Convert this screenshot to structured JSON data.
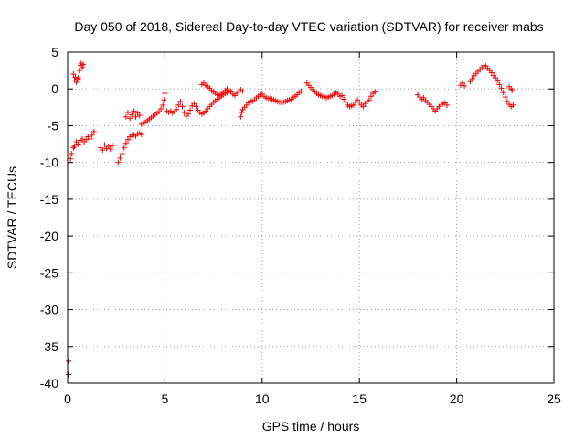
{
  "chart_data": {
    "type": "scatter",
    "title": "Day 050 of 2018, Sidereal Day-to-day VTEC variation (SDTVAR) for receiver mabs",
    "xlabel": "GPS time / hours",
    "ylabel": "SDTVAR / TECUs",
    "xlim": [
      0,
      25
    ],
    "ylim": [
      -40,
      5
    ],
    "xticks": [
      0,
      5,
      10,
      15,
      20,
      25
    ],
    "yticks": [
      5,
      0,
      -5,
      -10,
      -15,
      -20,
      -25,
      -30,
      -35,
      -40
    ],
    "grid": true,
    "marker": "+",
    "colors": {
      "primary": "#ff0000",
      "secondary": "#8b0000"
    },
    "series": [
      {
        "name": "main",
        "color": "#ff0000",
        "points": [
          [
            0.15,
            -9.5
          ],
          [
            0.2,
            -8.8
          ],
          [
            0.3,
            -8.0
          ],
          [
            0.3,
            2.0
          ],
          [
            0.35,
            1.2
          ],
          [
            0.4,
            1.6
          ],
          [
            0.45,
            0.9
          ],
          [
            0.5,
            1.3
          ],
          [
            0.55,
            1.5
          ],
          [
            0.6,
            2.5
          ],
          [
            0.65,
            3.2
          ],
          [
            0.7,
            3.5
          ],
          [
            0.75,
            2.9
          ],
          [
            0.8,
            3.3
          ],
          [
            0.35,
            -7.8
          ],
          [
            0.45,
            -7.2
          ],
          [
            0.55,
            -7.5
          ],
          [
            0.65,
            -7.0
          ],
          [
            0.75,
            -6.8
          ],
          [
            0.85,
            -7.2
          ],
          [
            0.95,
            -6.9
          ],
          [
            1.05,
            -6.5
          ],
          [
            1.15,
            -6.8
          ],
          [
            1.25,
            -6.3
          ],
          [
            1.35,
            -5.8
          ],
          [
            1.7,
            -8.0
          ],
          [
            1.8,
            -8.3
          ],
          [
            1.9,
            -7.6
          ],
          [
            2.0,
            -8.1
          ],
          [
            2.1,
            -7.8
          ],
          [
            2.2,
            -8.2
          ],
          [
            2.3,
            -7.7
          ],
          [
            2.6,
            -10.0
          ],
          [
            2.7,
            -9.4
          ],
          [
            2.8,
            -8.8
          ],
          [
            2.9,
            -8.0
          ],
          [
            3.0,
            -7.4
          ],
          [
            3.1,
            -6.9
          ],
          [
            3.2,
            -6.5
          ],
          [
            3.3,
            -6.3
          ],
          [
            3.4,
            -6.2
          ],
          [
            3.5,
            -6.4
          ],
          [
            3.6,
            -6.1
          ],
          [
            3.7,
            -6.0
          ],
          [
            3.8,
            -6.2
          ],
          [
            3.0,
            -3.8
          ],
          [
            3.1,
            -3.2
          ],
          [
            3.2,
            -4.0
          ],
          [
            3.3,
            -3.5
          ],
          [
            3.4,
            -3.0
          ],
          [
            3.5,
            -3.8
          ],
          [
            3.6,
            -3.3
          ],
          [
            3.7,
            -3.6
          ],
          [
            3.8,
            -4.8
          ],
          [
            3.9,
            -4.6
          ],
          [
            4.0,
            -4.5
          ],
          [
            4.1,
            -4.3
          ],
          [
            4.2,
            -4.1
          ],
          [
            4.3,
            -3.9
          ],
          [
            4.4,
            -3.7
          ],
          [
            4.5,
            -3.5
          ],
          [
            4.6,
            -3.3
          ],
          [
            4.7,
            -3.1
          ],
          [
            4.8,
            -2.7
          ],
          [
            4.9,
            -2.2
          ],
          [
            4.95,
            -1.5
          ],
          [
            5.0,
            -0.6
          ],
          [
            5.1,
            -3.0
          ],
          [
            5.2,
            -3.2
          ],
          [
            5.3,
            -3.0
          ],
          [
            5.4,
            -3.3
          ],
          [
            5.5,
            -3.1
          ],
          [
            5.6,
            -2.8
          ],
          [
            5.7,
            -2.2
          ],
          [
            5.8,
            -1.7
          ],
          [
            5.9,
            -2.4
          ],
          [
            6.0,
            -3.2
          ],
          [
            6.1,
            -3.7
          ],
          [
            6.2,
            -3.4
          ],
          [
            6.3,
            -2.9
          ],
          [
            6.4,
            -2.3
          ],
          [
            6.5,
            -2.0
          ],
          [
            6.6,
            -2.4
          ],
          [
            6.7,
            -2.9
          ],
          [
            6.8,
            -3.2
          ],
          [
            6.9,
            -3.4
          ],
          [
            7.0,
            -3.3
          ],
          [
            7.1,
            -3.0
          ],
          [
            7.2,
            -2.7
          ],
          [
            7.3,
            -2.4
          ],
          [
            7.4,
            -2.1
          ],
          [
            7.5,
            -1.8
          ],
          [
            7.6,
            -1.6
          ],
          [
            7.7,
            -1.4
          ],
          [
            7.8,
            -1.2
          ],
          [
            7.9,
            -1.0
          ],
          [
            8.0,
            -0.8
          ],
          [
            8.1,
            -0.6
          ],
          [
            8.2,
            -0.5
          ],
          [
            8.3,
            -0.4
          ],
          [
            8.4,
            -0.3
          ],
          [
            6.9,
            0.6
          ],
          [
            7.0,
            0.8
          ],
          [
            7.1,
            0.5
          ],
          [
            7.2,
            0.3
          ],
          [
            7.3,
            0.1
          ],
          [
            7.4,
            -0.2
          ],
          [
            7.5,
            -0.4
          ],
          [
            7.6,
            -0.6
          ],
          [
            7.7,
            -0.8
          ],
          [
            7.8,
            -0.9
          ],
          [
            7.9,
            -0.7
          ],
          [
            8.0,
            -0.5
          ],
          [
            8.1,
            -0.2
          ],
          [
            8.2,
            0.0
          ],
          [
            8.3,
            -0.2
          ],
          [
            8.4,
            -0.4
          ],
          [
            8.5,
            -0.7
          ],
          [
            8.6,
            -0.9
          ],
          [
            8.7,
            -0.6
          ],
          [
            8.8,
            -0.3
          ],
          [
            8.9,
            -0.1
          ],
          [
            9.0,
            -0.3
          ],
          [
            8.9,
            -3.8
          ],
          [
            8.95,
            -3.2
          ],
          [
            9.0,
            -2.8
          ],
          [
            9.1,
            -2.5
          ],
          [
            9.2,
            -2.2
          ],
          [
            9.3,
            -1.9
          ],
          [
            9.4,
            -1.6
          ],
          [
            9.5,
            -1.7
          ],
          [
            9.6,
            -1.5
          ],
          [
            9.7,
            -1.2
          ],
          [
            9.8,
            -1.0
          ],
          [
            9.9,
            -0.8
          ],
          [
            10.0,
            -0.7
          ],
          [
            10.1,
            -1.0
          ],
          [
            10.2,
            -1.2
          ],
          [
            10.3,
            -1.3
          ],
          [
            10.4,
            -1.3
          ],
          [
            10.5,
            -1.4
          ],
          [
            10.6,
            -1.5
          ],
          [
            10.7,
            -1.6
          ],
          [
            10.8,
            -1.7
          ],
          [
            10.9,
            -1.8
          ],
          [
            11.0,
            -1.8
          ],
          [
            11.1,
            -1.8
          ],
          [
            11.2,
            -1.7
          ],
          [
            11.3,
            -1.6
          ],
          [
            11.4,
            -1.5
          ],
          [
            11.5,
            -1.4
          ],
          [
            11.6,
            -1.2
          ],
          [
            11.7,
            -1.0
          ],
          [
            11.8,
            -0.8
          ],
          [
            11.9,
            -0.5
          ],
          [
            12.0,
            -0.3
          ],
          [
            12.3,
            0.8
          ],
          [
            12.4,
            0.5
          ],
          [
            12.5,
            0.2
          ],
          [
            12.6,
            -0.1
          ],
          [
            12.7,
            -0.4
          ],
          [
            12.8,
            -0.6
          ],
          [
            12.9,
            -0.8
          ],
          [
            13.0,
            -0.9
          ],
          [
            13.1,
            -1.0
          ],
          [
            13.2,
            -1.1
          ],
          [
            13.3,
            -1.2
          ],
          [
            13.4,
            -1.1
          ],
          [
            13.5,
            -1.0
          ],
          [
            13.6,
            -0.9
          ],
          [
            13.7,
            -0.7
          ],
          [
            13.8,
            -0.5
          ],
          [
            13.9,
            -0.7
          ],
          [
            14.0,
            -1.0
          ],
          [
            14.1,
            -0.9
          ],
          [
            14.2,
            -1.4
          ],
          [
            14.3,
            -1.8
          ],
          [
            14.4,
            -2.2
          ],
          [
            14.5,
            -2.4
          ],
          [
            14.6,
            -2.3
          ],
          [
            14.7,
            -2.2
          ],
          [
            14.8,
            -1.8
          ],
          [
            14.9,
            -1.5
          ],
          [
            15.0,
            -1.8
          ],
          [
            15.1,
            -2.2
          ],
          [
            15.2,
            -2.4
          ],
          [
            15.3,
            -2.0
          ],
          [
            15.4,
            -1.7
          ],
          [
            15.5,
            -1.5
          ],
          [
            15.6,
            -1.0
          ],
          [
            15.7,
            -0.6
          ],
          [
            15.8,
            -0.4
          ],
          [
            18.0,
            -0.8
          ],
          [
            18.1,
            -1.1
          ],
          [
            18.2,
            -1.4
          ],
          [
            18.3,
            -1.2
          ],
          [
            18.4,
            -1.6
          ],
          [
            18.5,
            -1.8
          ],
          [
            18.6,
            -2.1
          ],
          [
            18.7,
            -2.4
          ],
          [
            18.8,
            -2.7
          ],
          [
            18.9,
            -3.0
          ],
          [
            19.0,
            -2.7
          ],
          [
            19.1,
            -2.4
          ],
          [
            19.2,
            -2.2
          ],
          [
            19.3,
            -2.0
          ],
          [
            19.4,
            -1.9
          ],
          [
            19.5,
            -2.2
          ],
          [
            20.2,
            0.5
          ],
          [
            20.3,
            0.8
          ],
          [
            20.4,
            0.4
          ],
          [
            20.7,
            1.0
          ],
          [
            20.8,
            1.4
          ],
          [
            20.9,
            1.8
          ],
          [
            21.0,
            2.1
          ],
          [
            21.1,
            2.4
          ],
          [
            21.2,
            2.6
          ],
          [
            21.3,
            2.9
          ],
          [
            21.4,
            3.2
          ],
          [
            21.5,
            3.1
          ],
          [
            21.6,
            2.8
          ],
          [
            21.7,
            2.5
          ],
          [
            21.8,
            2.2
          ],
          [
            21.9,
            1.8
          ],
          [
            22.0,
            1.5
          ],
          [
            22.1,
            1.1
          ],
          [
            22.2,
            0.6
          ],
          [
            22.3,
            0.1
          ],
          [
            22.4,
            -0.5
          ],
          [
            22.5,
            -1.1
          ],
          [
            22.6,
            -1.7
          ],
          [
            22.7,
            -2.1
          ],
          [
            22.8,
            -2.4
          ],
          [
            22.9,
            -2.2
          ],
          [
            22.7,
            0.3
          ],
          [
            22.8,
            0.0
          ],
          [
            22.85,
            -0.2
          ]
        ]
      },
      {
        "name": "outliers",
        "color": "#8b0000",
        "points": [
          [
            0.05,
            -37.0
          ],
          [
            0.05,
            -38.8
          ]
        ]
      }
    ]
  }
}
